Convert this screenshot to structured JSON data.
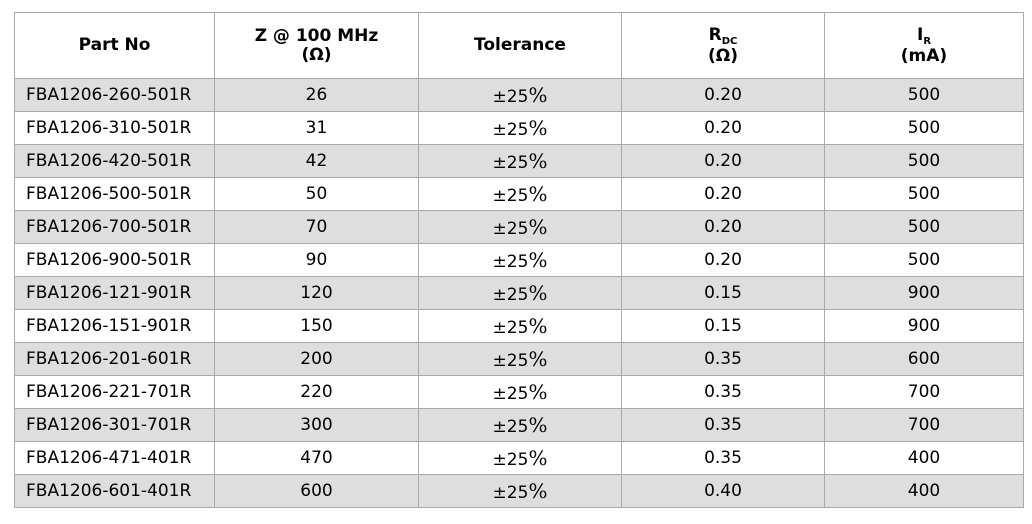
{
  "table": {
    "headers": {
      "part_no": "Part No",
      "impedance_line1": "Z @ 100 MHz",
      "impedance_line2": "(Ω)",
      "tolerance": "Tolerance",
      "rdc_main": "R",
      "rdc_sub": "DC",
      "rdc_unit": "(Ω)",
      "ir_main": "I",
      "ir_sub": "R",
      "ir_unit": "(mA)"
    },
    "rows": [
      {
        "part": "FBA1206-260-501R",
        "z": "26",
        "tol_sign": "±",
        "tol_value": "25",
        "tol_pct": "%",
        "rdc": "0.20",
        "ir": "500"
      },
      {
        "part": "FBA1206-310-501R",
        "z": "31",
        "tol_sign": "±",
        "tol_value": "25",
        "tol_pct": "%",
        "rdc": "0.20",
        "ir": "500"
      },
      {
        "part": "FBA1206-420-501R",
        "z": "42",
        "tol_sign": "±",
        "tol_value": "25",
        "tol_pct": "%",
        "rdc": "0.20",
        "ir": "500"
      },
      {
        "part": "FBA1206-500-501R",
        "z": "50",
        "tol_sign": "±",
        "tol_value": "25",
        "tol_pct": "%",
        "rdc": "0.20",
        "ir": "500"
      },
      {
        "part": "FBA1206-700-501R",
        "z": "70",
        "tol_sign": "±",
        "tol_value": "25",
        "tol_pct": "%",
        "rdc": "0.20",
        "ir": "500"
      },
      {
        "part": "FBA1206-900-501R",
        "z": "90",
        "tol_sign": "±",
        "tol_value": "25",
        "tol_pct": "%",
        "rdc": "0.20",
        "ir": "500"
      },
      {
        "part": "FBA1206-121-901R",
        "z": "120",
        "tol_sign": "±",
        "tol_value": "25",
        "tol_pct": "%",
        "rdc": "0.15",
        "ir": "900"
      },
      {
        "part": "FBA1206-151-901R",
        "z": "150",
        "tol_sign": "±",
        "tol_value": "25",
        "tol_pct": "%",
        "rdc": "0.15",
        "ir": "900"
      },
      {
        "part": "FBA1206-201-601R",
        "z": "200",
        "tol_sign": "±",
        "tol_value": "25",
        "tol_pct": "%",
        "rdc": "0.35",
        "ir": "600"
      },
      {
        "part": "FBA1206-221-701R",
        "z": "220",
        "tol_sign": "±",
        "tol_value": "25",
        "tol_pct": "%",
        "rdc": "0.35",
        "ir": "700"
      },
      {
        "part": "FBA1206-301-701R",
        "z": "300",
        "tol_sign": "±",
        "tol_value": "25",
        "tol_pct": "%",
        "rdc": "0.35",
        "ir": "700"
      },
      {
        "part": "FBA1206-471-401R",
        "z": "470",
        "tol_sign": "±",
        "tol_value": "25",
        "tol_pct": "%",
        "rdc": "0.35",
        "ir": "400"
      },
      {
        "part": "FBA1206-601-401R",
        "z": "600",
        "tol_sign": "±",
        "tol_value": "25",
        "tol_pct": "%",
        "rdc": "0.40",
        "ir": "400"
      }
    ],
    "shade_color": "#dedede",
    "border_color": "#a9a9a9"
  }
}
